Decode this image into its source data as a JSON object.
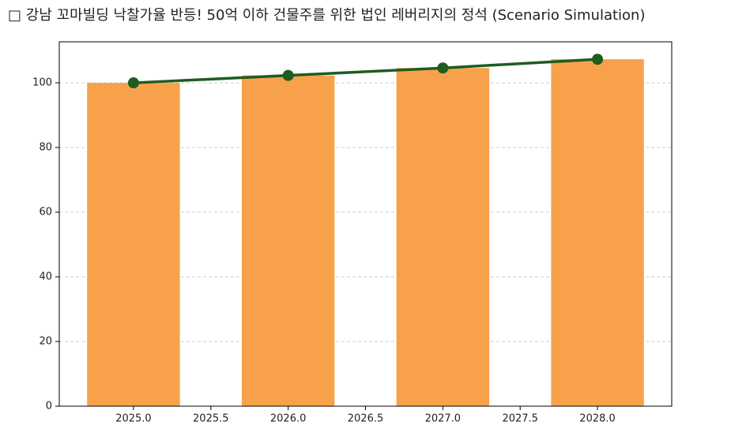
{
  "chart_data": {
    "type": "bar",
    "title": "□ 강남 꼬마빌딩 낙찰가율 반등! 50억 이하 건물주를 위한 법인 레버리지의 정석 (Scenario Simulation)",
    "x": [
      2025,
      2026,
      2027,
      2028
    ],
    "series": [
      {
        "type": "bar",
        "color": "#f7a24b",
        "values": [
          100,
          102.3,
          104.6,
          107.3
        ]
      },
      {
        "type": "line",
        "color": "#1e5c20",
        "values": [
          100,
          102.3,
          104.6,
          107.3
        ]
      }
    ],
    "bar_width": 0.6,
    "xlim": [
      2024.52,
      2028.48
    ],
    "xticks": [
      {
        "value": 2025,
        "label": "2025.0"
      },
      {
        "value": 2025.5,
        "label": "2025.5"
      },
      {
        "value": 2026,
        "label": "2026.0"
      },
      {
        "value": 2026.5,
        "label": "2026.5"
      },
      {
        "value": 2027,
        "label": "2027.0"
      },
      {
        "value": 2027.5,
        "label": "2027.5"
      },
      {
        "value": 2028,
        "label": "2028.0"
      }
    ],
    "ylim": [
      0,
      112.7
    ],
    "yticks": [
      0,
      20,
      40,
      60,
      80,
      100
    ],
    "grid": true
  }
}
